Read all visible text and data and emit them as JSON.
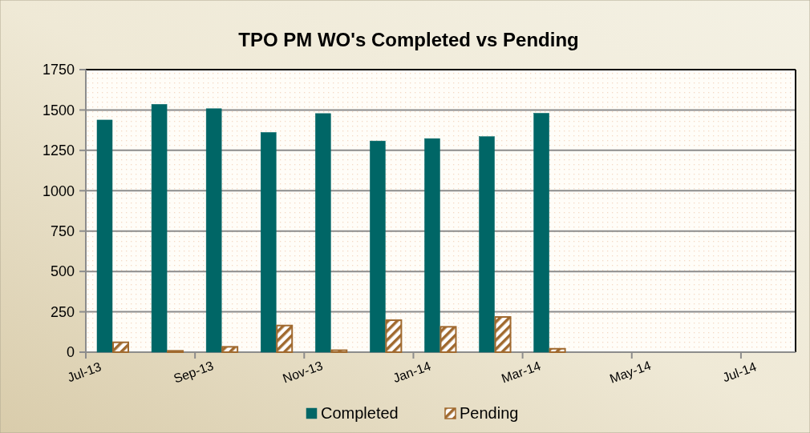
{
  "chart_data": {
    "type": "bar",
    "title": "TPO PM WO's Completed vs Pending",
    "categories": [
      "Jul-13",
      null,
      "Sep-13",
      null,
      "Nov-13",
      null,
      "Jan-14",
      null,
      "Mar-14",
      null,
      "May-14",
      null,
      "Jul-14"
    ],
    "series": [
      {
        "name": "Completed",
        "color": "#006666",
        "values": [
          1438,
          1535,
          1508,
          1361,
          1478,
          1308,
          1323,
          1335,
          1480,
          null,
          null,
          null,
          null
        ]
      },
      {
        "name": "Pending",
        "color": "#a0692e",
        "values": [
          61,
          8,
          33,
          165,
          12,
          198,
          157,
          218,
          21,
          null,
          null,
          null,
          null
        ]
      }
    ],
    "ylim": [
      0,
      1750
    ],
    "yticks": [
      0,
      250,
      500,
      750,
      1000,
      1250,
      1500,
      1750
    ],
    "grid": "y",
    "legend": "bottom"
  }
}
